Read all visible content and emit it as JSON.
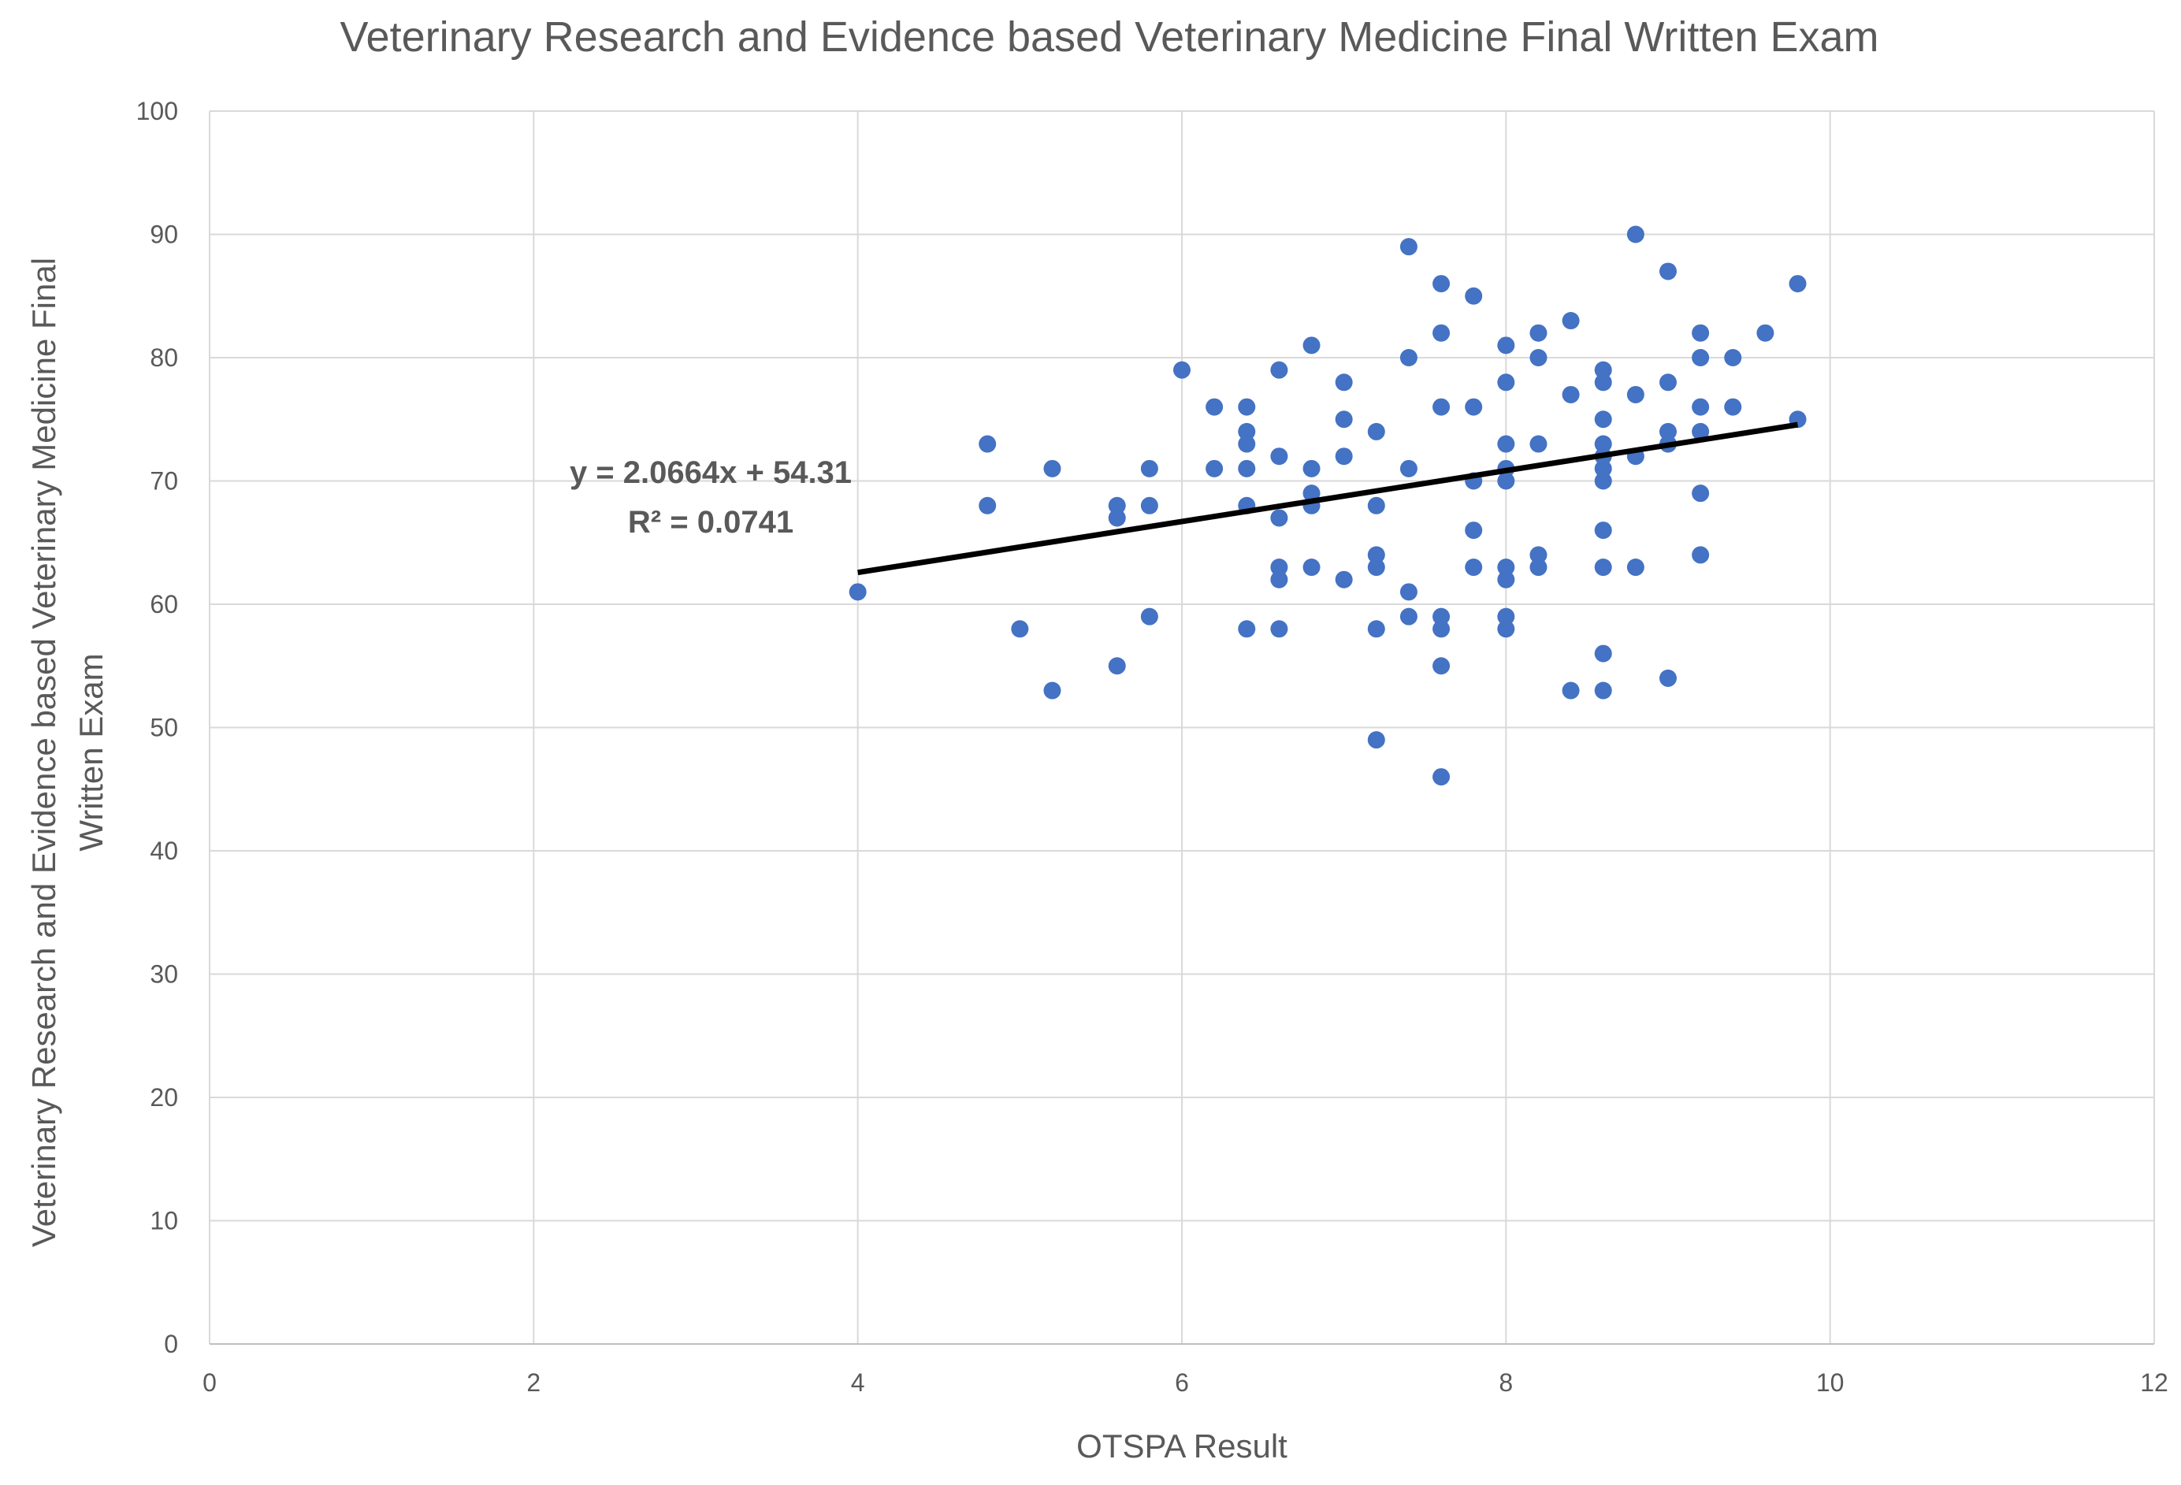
{
  "chart_data": {
    "type": "scatter",
    "title": "Veterinary Research and Evidence based Veterinary Medicine Final Written Exam",
    "xlabel": "OTSPA Result",
    "ylabel_lines": [
      "Veterinary Research and Evidence based Veterinary Medicine Final",
      "Written Exam"
    ],
    "xlim": [
      0,
      12
    ],
    "ylim": [
      0,
      100
    ],
    "x_ticks": [
      0,
      2,
      4,
      6,
      8,
      10,
      12
    ],
    "y_ticks": [
      0,
      10,
      20,
      30,
      40,
      50,
      60,
      70,
      80,
      90,
      100
    ],
    "grid": true,
    "point_color": "#4472c4",
    "trendline": {
      "slope": 2.0664,
      "intercept": 54.31,
      "x_range": [
        4.0,
        9.8
      ],
      "color": "#000000",
      "equation": "y = 2.0664x + 54.31",
      "r_squared": "R² = 0.0741"
    },
    "points": [
      {
        "x": 4.0,
        "y": 61
      },
      {
        "x": 4.8,
        "y": 73
      },
      {
        "x": 4.8,
        "y": 68
      },
      {
        "x": 5.0,
        "y": 58
      },
      {
        "x": 5.2,
        "y": 71
      },
      {
        "x": 5.2,
        "y": 53
      },
      {
        "x": 5.6,
        "y": 68
      },
      {
        "x": 5.6,
        "y": 67
      },
      {
        "x": 5.6,
        "y": 55
      },
      {
        "x": 5.8,
        "y": 71
      },
      {
        "x": 5.8,
        "y": 68
      },
      {
        "x": 5.8,
        "y": 59
      },
      {
        "x": 6.0,
        "y": 79
      },
      {
        "x": 6.2,
        "y": 76
      },
      {
        "x": 6.2,
        "y": 71
      },
      {
        "x": 6.4,
        "y": 76
      },
      {
        "x": 6.4,
        "y": 74
      },
      {
        "x": 6.4,
        "y": 73
      },
      {
        "x": 6.4,
        "y": 71
      },
      {
        "x": 6.4,
        "y": 68
      },
      {
        "x": 6.4,
        "y": 58
      },
      {
        "x": 6.6,
        "y": 79
      },
      {
        "x": 6.6,
        "y": 72
      },
      {
        "x": 6.6,
        "y": 67
      },
      {
        "x": 6.6,
        "y": 63
      },
      {
        "x": 6.6,
        "y": 62
      },
      {
        "x": 6.6,
        "y": 58
      },
      {
        "x": 6.8,
        "y": 81
      },
      {
        "x": 6.8,
        "y": 71
      },
      {
        "x": 6.8,
        "y": 69
      },
      {
        "x": 6.8,
        "y": 68
      },
      {
        "x": 6.8,
        "y": 63
      },
      {
        "x": 7.0,
        "y": 78
      },
      {
        "x": 7.0,
        "y": 75
      },
      {
        "x": 7.0,
        "y": 72
      },
      {
        "x": 7.0,
        "y": 62
      },
      {
        "x": 7.2,
        "y": 74
      },
      {
        "x": 7.2,
        "y": 68
      },
      {
        "x": 7.2,
        "y": 64
      },
      {
        "x": 7.2,
        "y": 63
      },
      {
        "x": 7.2,
        "y": 58
      },
      {
        "x": 7.2,
        "y": 49
      },
      {
        "x": 7.4,
        "y": 89
      },
      {
        "x": 7.4,
        "y": 80
      },
      {
        "x": 7.4,
        "y": 71
      },
      {
        "x": 7.4,
        "y": 61
      },
      {
        "x": 7.4,
        "y": 59
      },
      {
        "x": 7.6,
        "y": 86
      },
      {
        "x": 7.6,
        "y": 82
      },
      {
        "x": 7.6,
        "y": 76
      },
      {
        "x": 7.6,
        "y": 59
      },
      {
        "x": 7.6,
        "y": 58
      },
      {
        "x": 7.6,
        "y": 55
      },
      {
        "x": 7.6,
        "y": 46
      },
      {
        "x": 7.8,
        "y": 85
      },
      {
        "x": 7.8,
        "y": 76
      },
      {
        "x": 7.8,
        "y": 70
      },
      {
        "x": 7.8,
        "y": 66
      },
      {
        "x": 7.8,
        "y": 63
      },
      {
        "x": 8.0,
        "y": 81
      },
      {
        "x": 8.0,
        "y": 78
      },
      {
        "x": 8.0,
        "y": 73
      },
      {
        "x": 8.0,
        "y": 71
      },
      {
        "x": 8.0,
        "y": 70
      },
      {
        "x": 8.0,
        "y": 63
      },
      {
        "x": 8.0,
        "y": 62
      },
      {
        "x": 8.0,
        "y": 59
      },
      {
        "x": 8.0,
        "y": 58
      },
      {
        "x": 8.2,
        "y": 82
      },
      {
        "x": 8.2,
        "y": 80
      },
      {
        "x": 8.2,
        "y": 73
      },
      {
        "x": 8.2,
        "y": 64
      },
      {
        "x": 8.2,
        "y": 63
      },
      {
        "x": 8.4,
        "y": 83
      },
      {
        "x": 8.4,
        "y": 77
      },
      {
        "x": 8.4,
        "y": 53
      },
      {
        "x": 8.6,
        "y": 79
      },
      {
        "x": 8.6,
        "y": 78
      },
      {
        "x": 8.6,
        "y": 75
      },
      {
        "x": 8.6,
        "y": 73
      },
      {
        "x": 8.6,
        "y": 72
      },
      {
        "x": 8.6,
        "y": 71
      },
      {
        "x": 8.6,
        "y": 70
      },
      {
        "x": 8.6,
        "y": 66
      },
      {
        "x": 8.6,
        "y": 63
      },
      {
        "x": 8.6,
        "y": 56
      },
      {
        "x": 8.6,
        "y": 53
      },
      {
        "x": 8.8,
        "y": 90
      },
      {
        "x": 8.8,
        "y": 77
      },
      {
        "x": 8.8,
        "y": 72
      },
      {
        "x": 8.8,
        "y": 63
      },
      {
        "x": 9.0,
        "y": 87
      },
      {
        "x": 9.0,
        "y": 78
      },
      {
        "x": 9.0,
        "y": 74
      },
      {
        "x": 9.0,
        "y": 73
      },
      {
        "x": 9.0,
        "y": 54
      },
      {
        "x": 9.2,
        "y": 82
      },
      {
        "x": 9.2,
        "y": 80
      },
      {
        "x": 9.2,
        "y": 76
      },
      {
        "x": 9.2,
        "y": 74
      },
      {
        "x": 9.2,
        "y": 69
      },
      {
        "x": 9.2,
        "y": 64
      },
      {
        "x": 9.4,
        "y": 80
      },
      {
        "x": 9.4,
        "y": 76
      },
      {
        "x": 9.6,
        "y": 82
      },
      {
        "x": 9.8,
        "y": 86
      },
      {
        "x": 9.8,
        "y": 75
      }
    ]
  }
}
